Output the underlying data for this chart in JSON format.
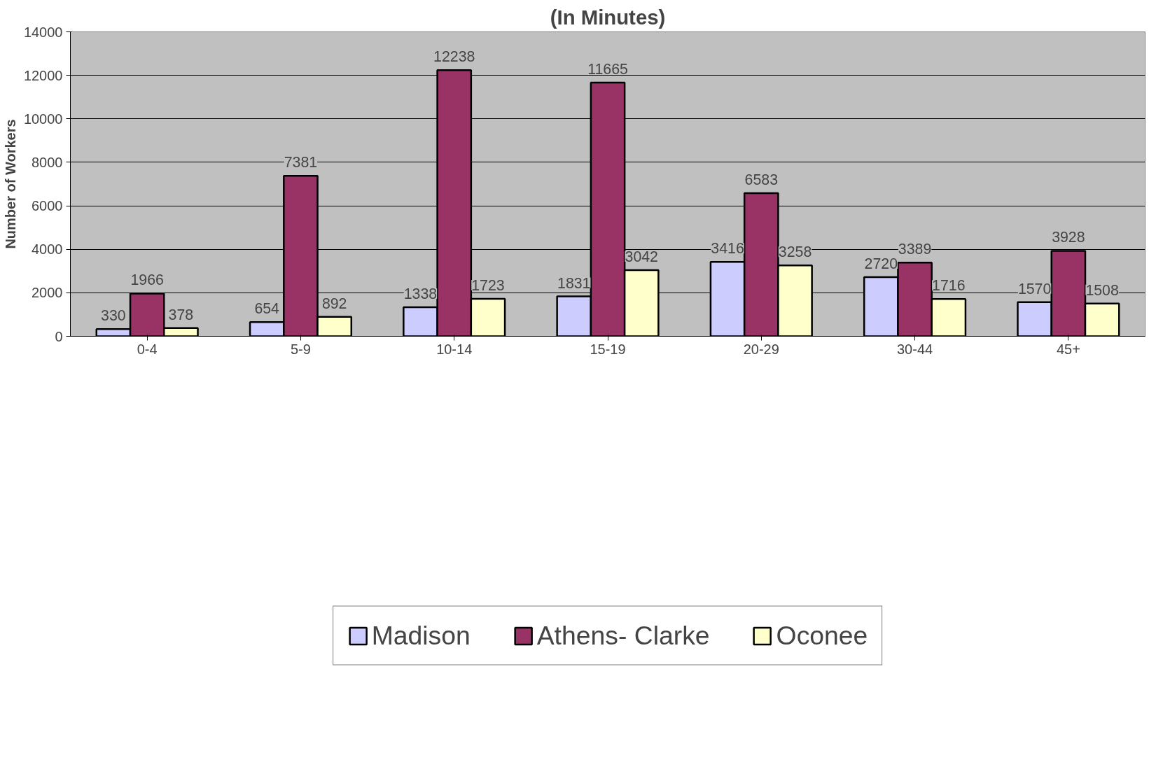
{
  "chart_data": {
    "type": "bar",
    "title": "(In Minutes)",
    "ylabel": "Number of Workers",
    "categories": [
      "0-4",
      "5-9",
      "10-14",
      "15-19",
      "20-29",
      "30-44",
      "45+"
    ],
    "series": [
      {
        "name": "Madison",
        "color": "#ccccff",
        "values": [
          330,
          654,
          1338,
          1831,
          3416,
          2720,
          1570
        ]
      },
      {
        "name": "Athens- Clarke",
        "color": "#993366",
        "values": [
          1966,
          7381,
          12238,
          11665,
          6583,
          3389,
          3928
        ]
      },
      {
        "name": "Oconee",
        "color": "#ffffcc",
        "values": [
          378,
          892,
          1723,
          3042,
          3258,
          1716,
          1508
        ]
      }
    ],
    "ylim": [
      0,
      14000
    ],
    "yticks": [
      0,
      2000,
      4000,
      6000,
      8000,
      10000,
      12000,
      14000
    ],
    "grid": "y",
    "legend": "bottom",
    "data_labels": true
  }
}
